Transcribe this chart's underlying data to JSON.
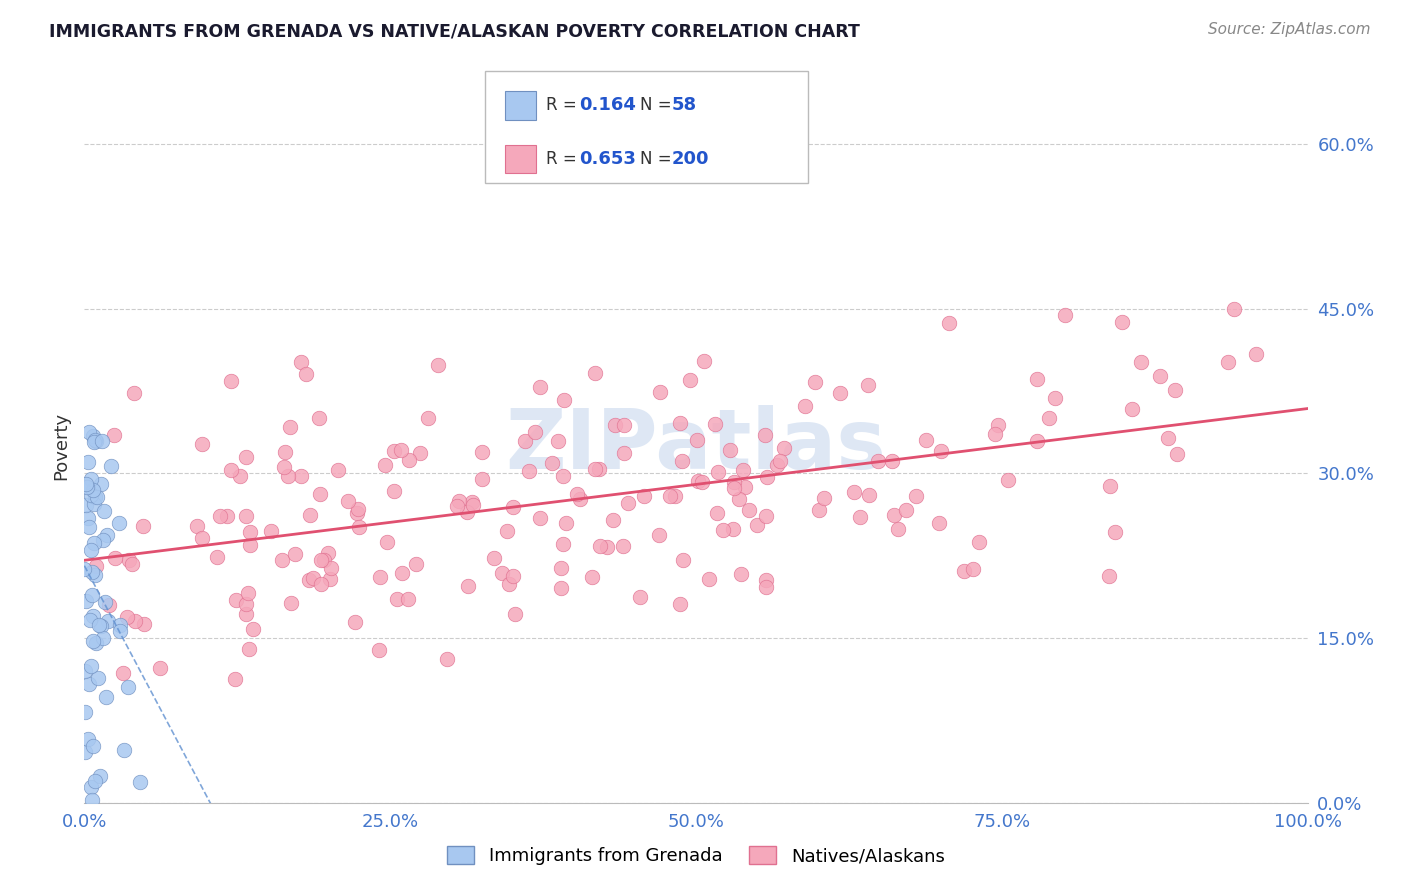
{
  "title": "IMMIGRANTS FROM GRENADA VS NATIVE/ALASKAN POVERTY CORRELATION CHART",
  "source_text": "Source: ZipAtlas.com",
  "ylabel": "Poverty",
  "watermark": "ZIPatlas",
  "xlim": [
    0.0,
    1.0
  ],
  "ylim": [
    0.0,
    0.65
  ],
  "ytick_positions": [
    0.0,
    0.15,
    0.3,
    0.45,
    0.6
  ],
  "ytick_labels": [
    "0.0%",
    "15.0%",
    "30.0%",
    "45.0%",
    "60.0%"
  ],
  "xtick_positions": [
    0.0,
    0.25,
    0.5,
    0.75,
    1.0
  ],
  "xtick_labels": [
    "0.0%",
    "25.0%",
    "50.0%",
    "75.0%",
    "100.0%"
  ],
  "blue_color": "#A8C8F0",
  "pink_color": "#F5A8BB",
  "blue_edge_color": "#7090C0",
  "pink_edge_color": "#E07090",
  "trend_blue_color": "#6090D0",
  "trend_pink_color": "#E05070",
  "legend_R_blue": "0.164",
  "legend_N_blue": "58",
  "legend_R_pink": "0.653",
  "legend_N_pink": "200",
  "legend_label_blue": "Immigrants from Grenada",
  "legend_label_pink": "Natives/Alaskans",
  "title_color": "#1a1a2e",
  "source_color": "#888888",
  "axis_label_color": "#333333",
  "tick_label_color": "#4477CC",
  "watermark_color": "#C8D8EE",
  "grid_color": "#CCCCCC",
  "background_color": "#FFFFFF"
}
